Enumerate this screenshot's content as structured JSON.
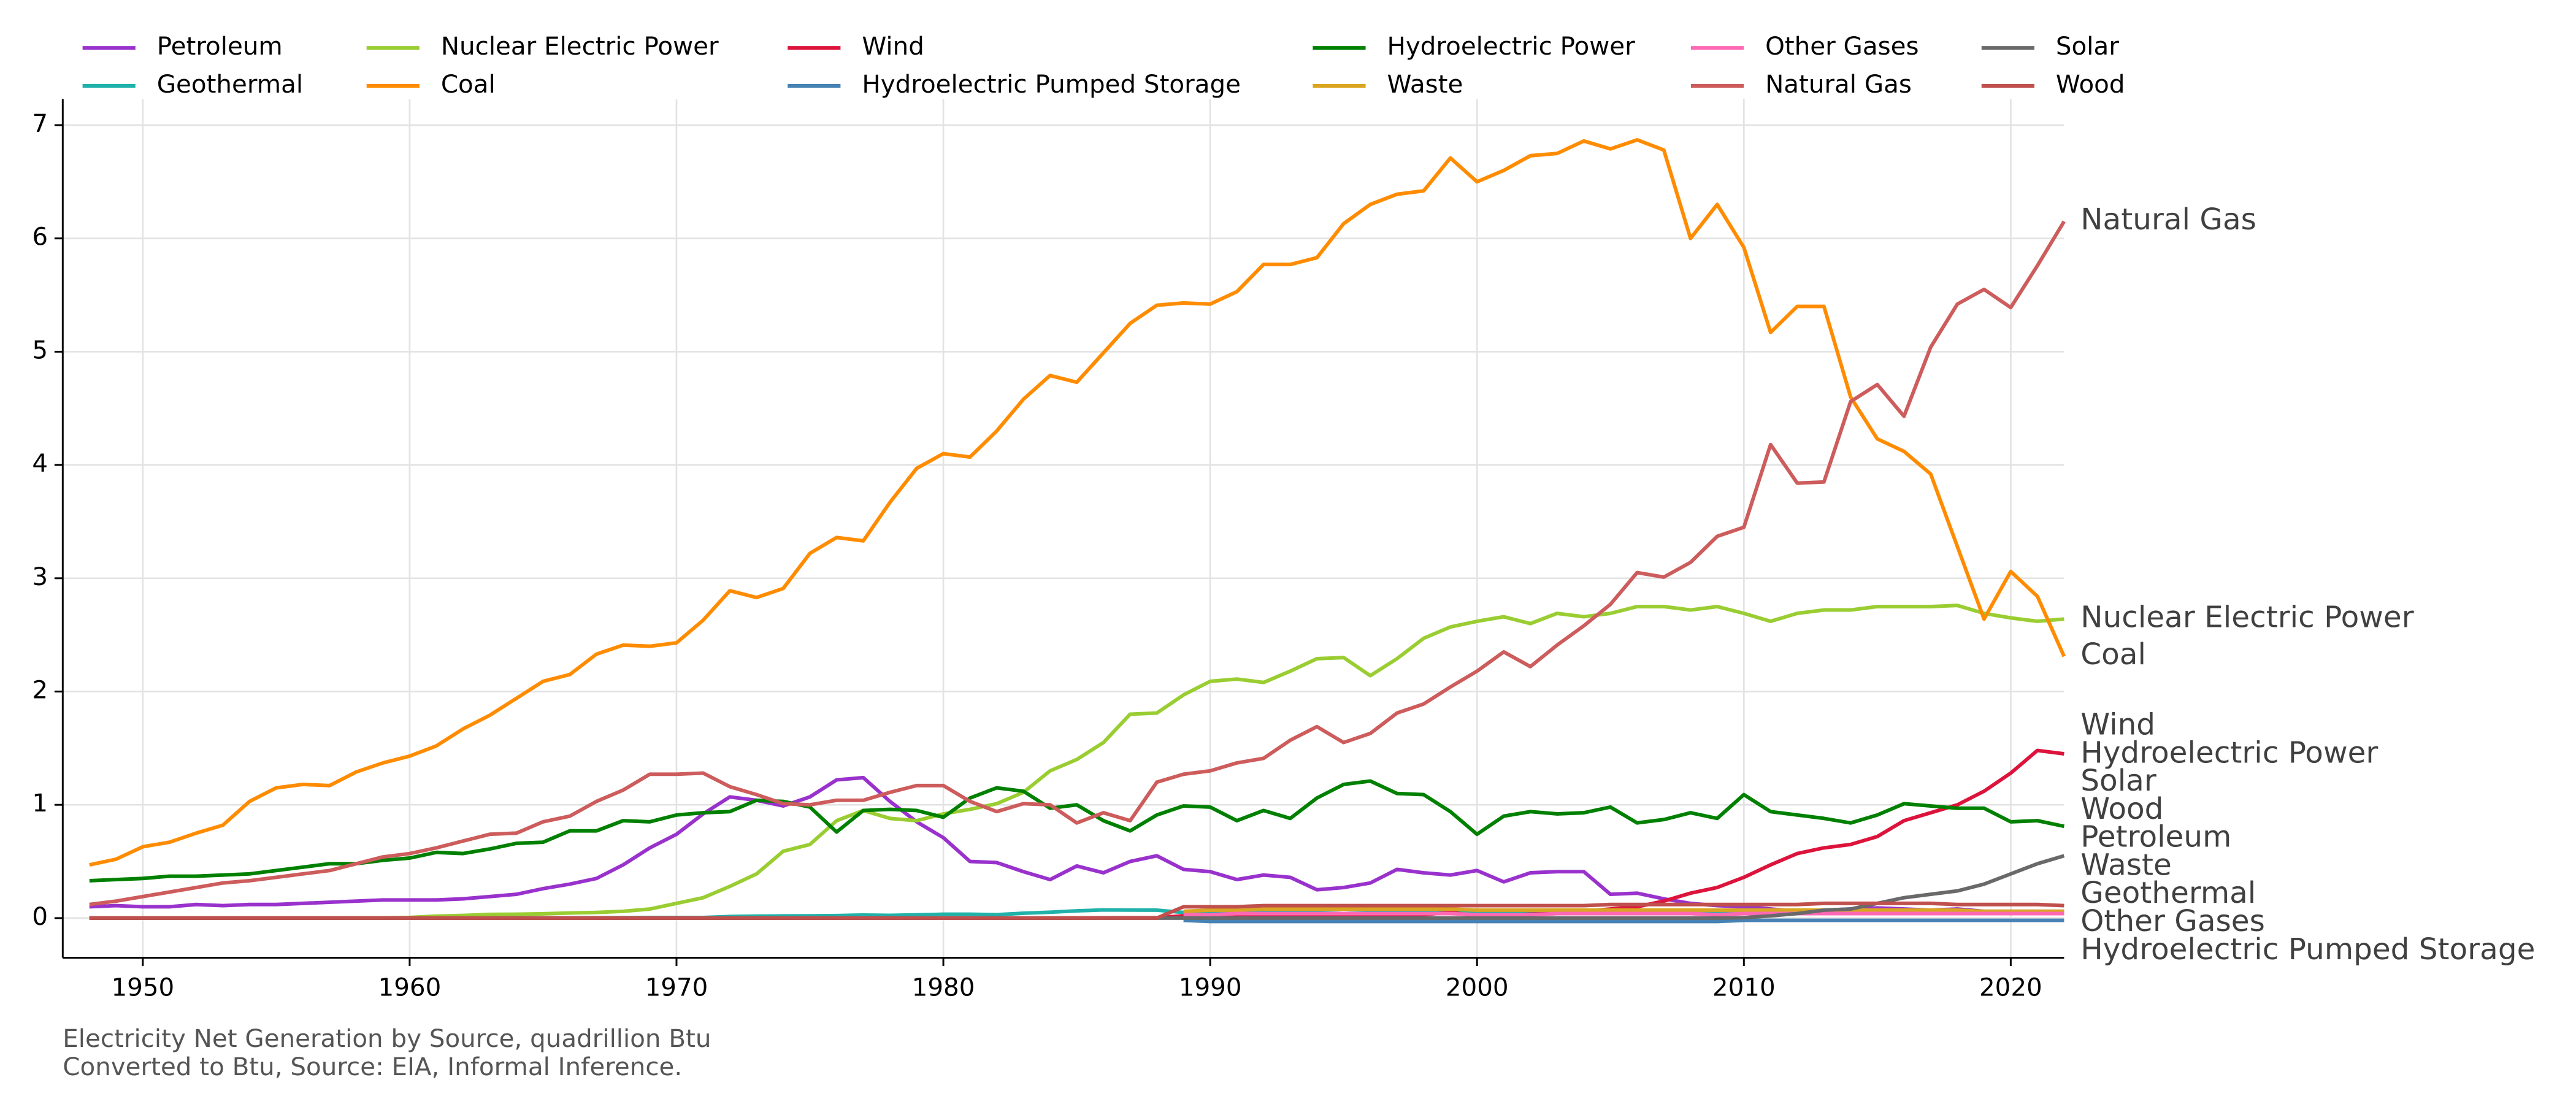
{
  "chart_data": {
    "type": "line",
    "caption_lines": [
      "Electricity Net Generation by Source, quadrillion Btu",
      "Converted to Btu, Source: EIA, Informal Inference."
    ],
    "x": [
      1948,
      1949,
      1950,
      1951,
      1952,
      1953,
      1954,
      1955,
      1956,
      1957,
      1958,
      1959,
      1960,
      1961,
      1962,
      1963,
      1964,
      1965,
      1966,
      1967,
      1968,
      1969,
      1970,
      1971,
      1972,
      1973,
      1974,
      1975,
      1976,
      1977,
      1978,
      1979,
      1980,
      1981,
      1982,
      1983,
      1984,
      1985,
      1986,
      1987,
      1988,
      1989,
      1990,
      1991,
      1992,
      1993,
      1994,
      1995,
      1996,
      1997,
      1998,
      1999,
      2000,
      2001,
      2002,
      2003,
      2004,
      2005,
      2006,
      2007,
      2008,
      2009,
      2010,
      2011,
      2012,
      2013,
      2014,
      2015,
      2016,
      2017,
      2018,
      2019,
      2020,
      2021,
      2022
    ],
    "xlim": [
      1947,
      2022
    ],
    "xticks": [
      1950,
      1960,
      1970,
      1980,
      1990,
      2000,
      2010,
      2020
    ],
    "ylim": [
      -0.35,
      7.23
    ],
    "yticks": [
      0,
      1,
      2,
      3,
      4,
      5,
      6,
      7
    ],
    "grid": true,
    "legend_position": "top",
    "series": [
      {
        "name": "Petroleum",
        "color": "#9932cc",
        "values": [
          0.1,
          0.11,
          0.1,
          0.1,
          0.12,
          0.11,
          0.12,
          0.12,
          0.13,
          0.14,
          0.15,
          0.16,
          0.16,
          0.16,
          0.17,
          0.19,
          0.21,
          0.26,
          0.3,
          0.35,
          0.47,
          0.62,
          0.74,
          0.92,
          1.07,
          1.04,
          0.99,
          1.07,
          1.22,
          1.24,
          1.03,
          0.85,
          0.71,
          0.5,
          0.49,
          0.41,
          0.34,
          0.46,
          0.4,
          0.5,
          0.55,
          0.43,
          0.41,
          0.34,
          0.38,
          0.36,
          0.25,
          0.27,
          0.31,
          0.43,
          0.4,
          0.38,
          0.42,
          0.32,
          0.4,
          0.41,
          0.41,
          0.21,
          0.22,
          0.17,
          0.13,
          0.11,
          0.1,
          0.08,
          0.06,
          0.07,
          0.08,
          0.09,
          0.08,
          0.07,
          0.08,
          0.06,
          0.06,
          0.06,
          0.06
        ]
      },
      {
        "name": "Geothermal",
        "color": "#20b2aa",
        "values": [
          0,
          0,
          0,
          0,
          0,
          0,
          0,
          0,
          0,
          0,
          0,
          0,
          0.001,
          0.001,
          0.002,
          0.002,
          0.002,
          0.002,
          0.002,
          0.003,
          0.004,
          0.005,
          0.005,
          0.005,
          0.014,
          0.017,
          0.019,
          0.02,
          0.022,
          0.027,
          0.024,
          0.029,
          0.034,
          0.034,
          0.03,
          0.043,
          0.052,
          0.064,
          0.072,
          0.071,
          0.07,
          0.05,
          0.05,
          0.05,
          0.05,
          0.05,
          0.05,
          0.04,
          0.05,
          0.05,
          0.05,
          0.05,
          0.05,
          0.05,
          0.05,
          0.05,
          0.05,
          0.05,
          0.05,
          0.05,
          0.05,
          0.05,
          0.05,
          0.05,
          0.05,
          0.05,
          0.05,
          0.05,
          0.05,
          0.05,
          0.05,
          0.05,
          0.05,
          0.05,
          0.05
        ]
      },
      {
        "name": "Nuclear Electric Power",
        "color": "#9acd32",
        "values": [
          0,
          0,
          0,
          0,
          0,
          0,
          0,
          0,
          0,
          0,
          0.002,
          0.002,
          0.006,
          0.017,
          0.023,
          0.033,
          0.034,
          0.038,
          0.045,
          0.05,
          0.06,
          0.08,
          0.13,
          0.18,
          0.28,
          0.39,
          0.59,
          0.65,
          0.86,
          0.95,
          0.88,
          0.86,
          0.92,
          0.96,
          1.01,
          1.11,
          1.3,
          1.4,
          1.55,
          1.8,
          1.81,
          1.97,
          2.09,
          2.11,
          2.08,
          2.18,
          2.29,
          2.3,
          2.14,
          2.29,
          2.47,
          2.57,
          2.62,
          2.66,
          2.6,
          2.69,
          2.66,
          2.69,
          2.75,
          2.75,
          2.72,
          2.75,
          2.69,
          2.62,
          2.69,
          2.72,
          2.72,
          2.75,
          2.75,
          2.75,
          2.76,
          2.69,
          2.65,
          2.62,
          2.64
        ]
      },
      {
        "name": "Coal",
        "color": "#ff8c00",
        "values": [
          0.47,
          0.52,
          0.63,
          0.67,
          0.75,
          0.82,
          1.03,
          1.15,
          1.18,
          1.17,
          1.29,
          1.37,
          1.43,
          1.52,
          1.67,
          1.79,
          1.94,
          2.09,
          2.15,
          2.33,
          2.41,
          2.4,
          2.43,
          2.63,
          2.89,
          2.83,
          2.91,
          3.22,
          3.36,
          3.33,
          3.67,
          3.97,
          4.1,
          4.07,
          4.3,
          4.58,
          4.79,
          4.73,
          4.99,
          5.25,
          5.41,
          5.43,
          5.42,
          5.53,
          5.77,
          5.77,
          5.83,
          6.13,
          6.3,
          6.39,
          6.42,
          6.71,
          6.5,
          6.6,
          6.73,
          6.75,
          6.86,
          6.79,
          6.87,
          6.78,
          6.0,
          6.3,
          5.92,
          5.17,
          5.4,
          5.4,
          4.6,
          4.23,
          4.12,
          3.92,
          3.28,
          2.64,
          3.06,
          2.84,
          2.31
        ]
      },
      {
        "name": "Wind",
        "color": "#dc143c",
        "values": [
          0,
          0,
          0,
          0,
          0,
          0,
          0,
          0,
          0,
          0,
          0,
          0,
          0,
          0,
          0,
          0,
          0,
          0,
          0,
          0,
          0,
          0,
          0,
          0,
          0,
          0,
          0,
          0,
          0,
          0,
          0,
          0,
          0,
          0,
          0,
          0.0001,
          0.0003,
          0.001,
          0.002,
          0.003,
          0.003,
          0.02,
          0.03,
          0.03,
          0.03,
          0.03,
          0.03,
          0.03,
          0.03,
          0.03,
          0.03,
          0.05,
          0.02,
          0.02,
          0.035,
          0.04,
          0.06,
          0.08,
          0.1,
          0.15,
          0.22,
          0.27,
          0.36,
          0.47,
          0.57,
          0.62,
          0.65,
          0.72,
          0.86,
          0.93,
          1.0,
          1.12,
          1.28,
          1.48,
          1.45
        ]
      },
      {
        "name": "Hydroelectric Pumped Storage",
        "color": "#4682b4",
        "values": [
          null,
          null,
          null,
          null,
          null,
          null,
          null,
          null,
          null,
          null,
          null,
          null,
          null,
          null,
          null,
          null,
          null,
          null,
          null,
          null,
          null,
          null,
          null,
          null,
          null,
          null,
          null,
          null,
          null,
          null,
          null,
          null,
          null,
          null,
          null,
          null,
          null,
          null,
          null,
          null,
          null,
          -0.02,
          -0.03,
          -0.03,
          -0.03,
          -0.03,
          -0.03,
          -0.03,
          -0.03,
          -0.03,
          -0.03,
          -0.03,
          -0.03,
          -0.03,
          -0.03,
          -0.03,
          -0.03,
          -0.03,
          -0.03,
          -0.03,
          -0.03,
          -0.03,
          -0.02,
          -0.02,
          -0.02,
          -0.02,
          -0.02,
          -0.02,
          -0.02,
          -0.02,
          -0.02,
          -0.02,
          -0.02,
          -0.02,
          -0.02
        ]
      },
      {
        "name": "Hydroelectric Power",
        "color": "#008000",
        "values": [
          0.33,
          0.34,
          0.35,
          0.37,
          0.37,
          0.38,
          0.39,
          0.42,
          0.45,
          0.48,
          0.48,
          0.51,
          0.53,
          0.58,
          0.57,
          0.61,
          0.66,
          0.67,
          0.77,
          0.77,
          0.86,
          0.85,
          0.91,
          0.93,
          0.94,
          1.04,
          1.03,
          0.98,
          0.76,
          0.95,
          0.96,
          0.95,
          0.89,
          1.06,
          1.15,
          1.12,
          0.97,
          1.0,
          0.86,
          0.77,
          0.91,
          0.99,
          0.98,
          0.86,
          0.95,
          0.88,
          1.06,
          1.18,
          1.21,
          1.1,
          1.09,
          0.94,
          0.74,
          0.9,
          0.94,
          0.92,
          0.93,
          0.98,
          0.84,
          0.87,
          0.93,
          0.88,
          1.09,
          0.94,
          0.91,
          0.88,
          0.84,
          0.91,
          1.01,
          0.99,
          0.97,
          0.97,
          0.85,
          0.86,
          0.81
        ]
      },
      {
        "name": "Waste",
        "color": "#daa520",
        "values": [
          null,
          null,
          null,
          null,
          null,
          null,
          null,
          null,
          null,
          null,
          null,
          null,
          null,
          null,
          null,
          null,
          null,
          null,
          null,
          null,
          null,
          null,
          null,
          null,
          null,
          null,
          null,
          null,
          null,
          null,
          null,
          null,
          null,
          null,
          null,
          null,
          null,
          null,
          null,
          null,
          null,
          0.06,
          0.07,
          0.07,
          0.08,
          0.08,
          0.08,
          0.08,
          0.08,
          0.08,
          0.08,
          0.08,
          0.07,
          0.07,
          0.07,
          0.07,
          0.07,
          0.07,
          0.07,
          0.07,
          0.07,
          0.07,
          0.07,
          0.07,
          0.07,
          0.07,
          0.07,
          0.07,
          0.07,
          0.07,
          0.07,
          0.06,
          0.06,
          0.06,
          0.06
        ]
      },
      {
        "name": "Other Gases",
        "color": "#ff69b4",
        "values": [
          null,
          null,
          null,
          null,
          null,
          null,
          null,
          null,
          null,
          null,
          null,
          null,
          null,
          null,
          null,
          null,
          null,
          null,
          null,
          null,
          null,
          null,
          null,
          null,
          null,
          null,
          null,
          null,
          null,
          null,
          null,
          null,
          null,
          null,
          null,
          null,
          null,
          null,
          null,
          null,
          null,
          0.03,
          0.03,
          0.04,
          0.04,
          0.04,
          0.04,
          0.04,
          0.04,
          0.04,
          0.04,
          0.04,
          0.03,
          0.03,
          0.03,
          0.04,
          0.04,
          0.04,
          0.04,
          0.04,
          0.04,
          0.03,
          0.04,
          0.04,
          0.04,
          0.04,
          0.04,
          0.04,
          0.04,
          0.04,
          0.04,
          0.04,
          0.04,
          0.04,
          0.04
        ]
      },
      {
        "name": "Natural Gas",
        "color": "#cd5c5c",
        "values": [
          0.12,
          0.15,
          0.19,
          0.23,
          0.27,
          0.31,
          0.33,
          0.36,
          0.39,
          0.42,
          0.48,
          0.54,
          0.57,
          0.62,
          0.68,
          0.74,
          0.75,
          0.85,
          0.9,
          1.03,
          1.13,
          1.27,
          1.27,
          1.28,
          1.16,
          1.09,
          1.01,
          1.0,
          1.04,
          1.04,
          1.11,
          1.17,
          1.17,
          1.03,
          0.94,
          1.01,
          1.0,
          0.84,
          0.93,
          0.86,
          1.2,
          1.27,
          1.3,
          1.37,
          1.41,
          1.57,
          1.69,
          1.55,
          1.63,
          1.81,
          1.89,
          2.04,
          2.18,
          2.35,
          2.22,
          2.41,
          2.58,
          2.77,
          3.05,
          3.01,
          3.14,
          3.37,
          3.45,
          4.18,
          3.84,
          3.85,
          4.56,
          4.71,
          4.43,
          5.04,
          5.42,
          5.55,
          5.39,
          5.76,
          6.15
        ]
      },
      {
        "name": "Solar",
        "color": "#696969",
        "values": [
          0,
          0,
          0,
          0,
          0,
          0,
          0,
          0,
          0,
          0,
          0,
          0,
          0,
          0,
          0,
          0,
          0,
          0,
          0,
          0,
          0,
          0,
          0,
          0,
          0,
          0,
          0,
          0,
          0,
          0,
          0,
          0,
          0,
          0,
          0,
          0,
          0,
          0,
          0,
          0,
          0,
          0,
          0,
          0,
          0,
          0,
          0,
          0,
          0,
          0,
          0,
          0,
          0,
          0,
          0,
          0,
          0,
          0,
          0,
          0,
          0,
          0,
          0.004,
          0.02,
          0.04,
          0.07,
          0.08,
          0.13,
          0.18,
          0.21,
          0.24,
          0.3,
          0.39,
          0.48,
          0.55
        ]
      },
      {
        "name": "Wood",
        "color": "#c0504d",
        "values": [
          0,
          0,
          0,
          0,
          0,
          0,
          0,
          0,
          0,
          0,
          0,
          0,
          0,
          0,
          0,
          0,
          0,
          0,
          0,
          0,
          0,
          0,
          0,
          0,
          0,
          0,
          0,
          0,
          0,
          0,
          0,
          0,
          0,
          0,
          0,
          0,
          0,
          0,
          0,
          0,
          0,
          0.1,
          0.1,
          0.1,
          0.11,
          0.11,
          0.11,
          0.11,
          0.11,
          0.11,
          0.11,
          0.11,
          0.11,
          0.11,
          0.11,
          0.11,
          0.11,
          0.12,
          0.12,
          0.12,
          0.12,
          0.12,
          0.12,
          0.12,
          0.12,
          0.13,
          0.13,
          0.13,
          0.13,
          0.13,
          0.12,
          0.12,
          0.12,
          0.12,
          0.11
        ]
      }
    ]
  }
}
